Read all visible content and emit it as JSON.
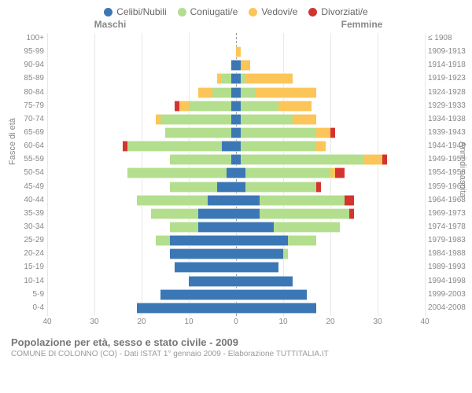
{
  "legend": [
    {
      "label": "Celibi/Nubili",
      "color": "#3b77b5"
    },
    {
      "label": "Coniugati/e",
      "color": "#b3de8d"
    },
    {
      "label": "Vedovi/e",
      "color": "#fcc559"
    },
    {
      "label": "Divorziati/e",
      "color": "#d43430"
    }
  ],
  "gender_labels": {
    "male": "Maschi",
    "female": "Femmine"
  },
  "axis_titles": {
    "left": "Fasce di età",
    "right": "Anni di nascita"
  },
  "title": "Popolazione per età, sesso e stato civile - 2009",
  "subtitle": "COMUNE DI COLONNO (CO) - Dati ISTAT 1° gennaio 2009 - Elaborazione TUTTITALIA.IT",
  "x_axis": {
    "max": 40,
    "ticks": [
      40,
      30,
      20,
      10,
      0,
      10,
      20,
      30,
      40
    ]
  },
  "colors": {
    "celibi": "#3b77b5",
    "coniugati": "#b3de8d",
    "vedovi": "#fcc559",
    "divorziati": "#d43430",
    "grid": "#e8e8e8",
    "center": "#999999",
    "bg": "#ffffff"
  },
  "rows": [
    {
      "age": "100+",
      "birth": "≤ 1908",
      "m": {
        "c": 0,
        "k": 0,
        "v": 0,
        "d": 0
      },
      "f": {
        "c": 0,
        "k": 0,
        "v": 0,
        "d": 0
      }
    },
    {
      "age": "95-99",
      "birth": "1909-1913",
      "m": {
        "c": 0,
        "k": 0,
        "v": 0,
        "d": 0
      },
      "f": {
        "c": 0,
        "k": 0,
        "v": 1,
        "d": 0
      }
    },
    {
      "age": "90-94",
      "birth": "1914-1918",
      "m": {
        "c": 1,
        "k": 0,
        "v": 0,
        "d": 0
      },
      "f": {
        "c": 1,
        "k": 0,
        "v": 2,
        "d": 0
      }
    },
    {
      "age": "85-89",
      "birth": "1919-1923",
      "m": {
        "c": 1,
        "k": 2,
        "v": 1,
        "d": 0
      },
      "f": {
        "c": 1,
        "k": 1,
        "v": 10,
        "d": 0
      }
    },
    {
      "age": "80-84",
      "birth": "1924-1928",
      "m": {
        "c": 1,
        "k": 4,
        "v": 3,
        "d": 0
      },
      "f": {
        "c": 1,
        "k": 3,
        "v": 13,
        "d": 0
      }
    },
    {
      "age": "75-79",
      "birth": "1929-1933",
      "m": {
        "c": 1,
        "k": 9,
        "v": 2,
        "d": 1
      },
      "f": {
        "c": 1,
        "k": 8,
        "v": 7,
        "d": 0
      }
    },
    {
      "age": "70-74",
      "birth": "1934-1938",
      "m": {
        "c": 1,
        "k": 15,
        "v": 1,
        "d": 0
      },
      "f": {
        "c": 1,
        "k": 11,
        "v": 5,
        "d": 0
      }
    },
    {
      "age": "65-69",
      "birth": "1939-1943",
      "m": {
        "c": 1,
        "k": 14,
        "v": 0,
        "d": 0
      },
      "f": {
        "c": 1,
        "k": 16,
        "v": 3,
        "d": 1
      }
    },
    {
      "age": "60-64",
      "birth": "1944-1948",
      "m": {
        "c": 3,
        "k": 20,
        "v": 0,
        "d": 1
      },
      "f": {
        "c": 1,
        "k": 16,
        "v": 2,
        "d": 0
      }
    },
    {
      "age": "55-59",
      "birth": "1949-1953",
      "m": {
        "c": 1,
        "k": 13,
        "v": 0,
        "d": 0
      },
      "f": {
        "c": 1,
        "k": 26,
        "v": 4,
        "d": 1
      }
    },
    {
      "age": "50-54",
      "birth": "1954-1958",
      "m": {
        "c": 2,
        "k": 21,
        "v": 0,
        "d": 0
      },
      "f": {
        "c": 2,
        "k": 18,
        "v": 1,
        "d": 2
      }
    },
    {
      "age": "45-49",
      "birth": "1959-1963",
      "m": {
        "c": 4,
        "k": 10,
        "v": 0,
        "d": 0
      },
      "f": {
        "c": 2,
        "k": 15,
        "v": 0,
        "d": 1
      }
    },
    {
      "age": "40-44",
      "birth": "1964-1968",
      "m": {
        "c": 6,
        "k": 15,
        "v": 0,
        "d": 0
      },
      "f": {
        "c": 5,
        "k": 18,
        "v": 0,
        "d": 2
      }
    },
    {
      "age": "35-39",
      "birth": "1969-1973",
      "m": {
        "c": 8,
        "k": 10,
        "v": 0,
        "d": 0
      },
      "f": {
        "c": 5,
        "k": 19,
        "v": 0,
        "d": 1
      }
    },
    {
      "age": "30-34",
      "birth": "1974-1978",
      "m": {
        "c": 8,
        "k": 6,
        "v": 0,
        "d": 0
      },
      "f": {
        "c": 8,
        "k": 14,
        "v": 0,
        "d": 0
      }
    },
    {
      "age": "25-29",
      "birth": "1979-1983",
      "m": {
        "c": 14,
        "k": 3,
        "v": 0,
        "d": 0
      },
      "f": {
        "c": 11,
        "k": 6,
        "v": 0,
        "d": 0
      }
    },
    {
      "age": "20-24",
      "birth": "1984-1988",
      "m": {
        "c": 14,
        "k": 0,
        "v": 0,
        "d": 0
      },
      "f": {
        "c": 10,
        "k": 1,
        "v": 0,
        "d": 0
      }
    },
    {
      "age": "15-19",
      "birth": "1989-1993",
      "m": {
        "c": 13,
        "k": 0,
        "v": 0,
        "d": 0
      },
      "f": {
        "c": 9,
        "k": 0,
        "v": 0,
        "d": 0
      }
    },
    {
      "age": "10-14",
      "birth": "1994-1998",
      "m": {
        "c": 10,
        "k": 0,
        "v": 0,
        "d": 0
      },
      "f": {
        "c": 12,
        "k": 0,
        "v": 0,
        "d": 0
      }
    },
    {
      "age": "5-9",
      "birth": "1999-2003",
      "m": {
        "c": 16,
        "k": 0,
        "v": 0,
        "d": 0
      },
      "f": {
        "c": 15,
        "k": 0,
        "v": 0,
        "d": 0
      }
    },
    {
      "age": "0-4",
      "birth": "2004-2008",
      "m": {
        "c": 21,
        "k": 0,
        "v": 0,
        "d": 0
      },
      "f": {
        "c": 17,
        "k": 0,
        "v": 0,
        "d": 0
      }
    }
  ]
}
